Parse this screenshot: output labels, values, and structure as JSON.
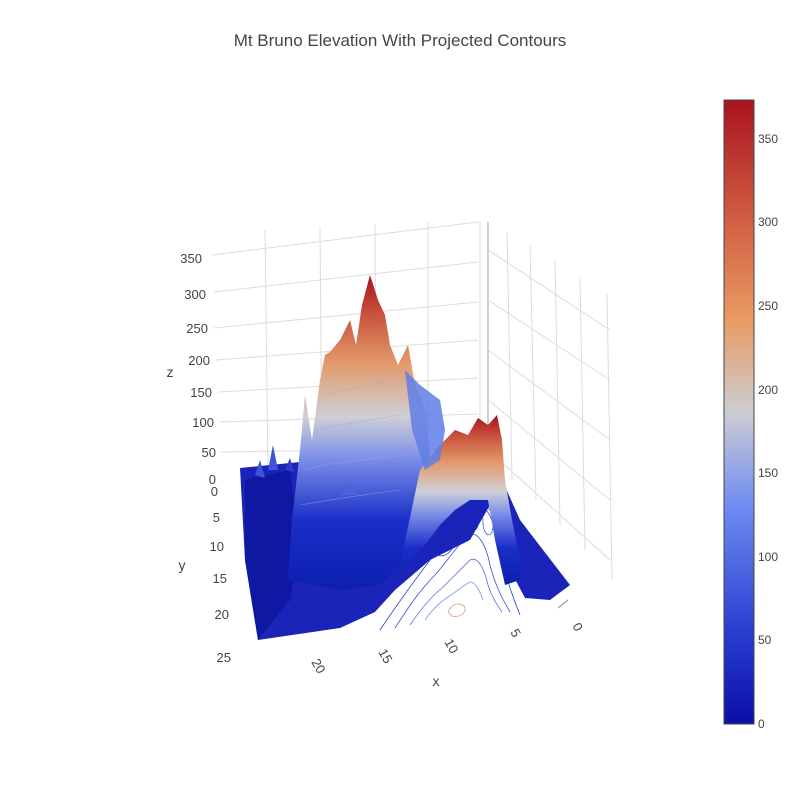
{
  "chart_data": {
    "type": "surface",
    "title": "Mt Bruno Elevation With Projected Contours",
    "xlabel": "x",
    "ylabel": "y",
    "zlabel": "z",
    "x_ticks": [
      "0",
      "5",
      "10",
      "15",
      "20"
    ],
    "y_ticks": [
      "0",
      "5",
      "10",
      "15",
      "20",
      "25"
    ],
    "z_ticks": [
      "0",
      "50",
      "100",
      "150",
      "200",
      "250",
      "300",
      "350"
    ],
    "xlim": [
      0,
      24
    ],
    "ylim": [
      0,
      24
    ],
    "zlim": [
      0,
      372
    ],
    "contours": {
      "projected_on": "z",
      "show": true
    },
    "colorscale": {
      "name": "portland-like",
      "stops": [
        "#0a14a8",
        "#3c5cd6",
        "#7a9af0",
        "#cfcfd6",
        "#e8a070",
        "#c04a3a",
        "#a0101e"
      ],
      "range": [
        0,
        372
      ],
      "ticks": [
        "0",
        "50",
        "100",
        "150",
        "200",
        "250",
        "300",
        "350"
      ]
    },
    "peaks": [
      {
        "x": 15,
        "y": 2,
        "z": 372
      },
      {
        "x": 17,
        "y": 3,
        "z": 300
      },
      {
        "x": 11,
        "y": 5,
        "z": 190
      },
      {
        "x": 3,
        "y": 13,
        "z": 210
      },
      {
        "x": 22,
        "y": 5,
        "z": 145
      }
    ]
  }
}
